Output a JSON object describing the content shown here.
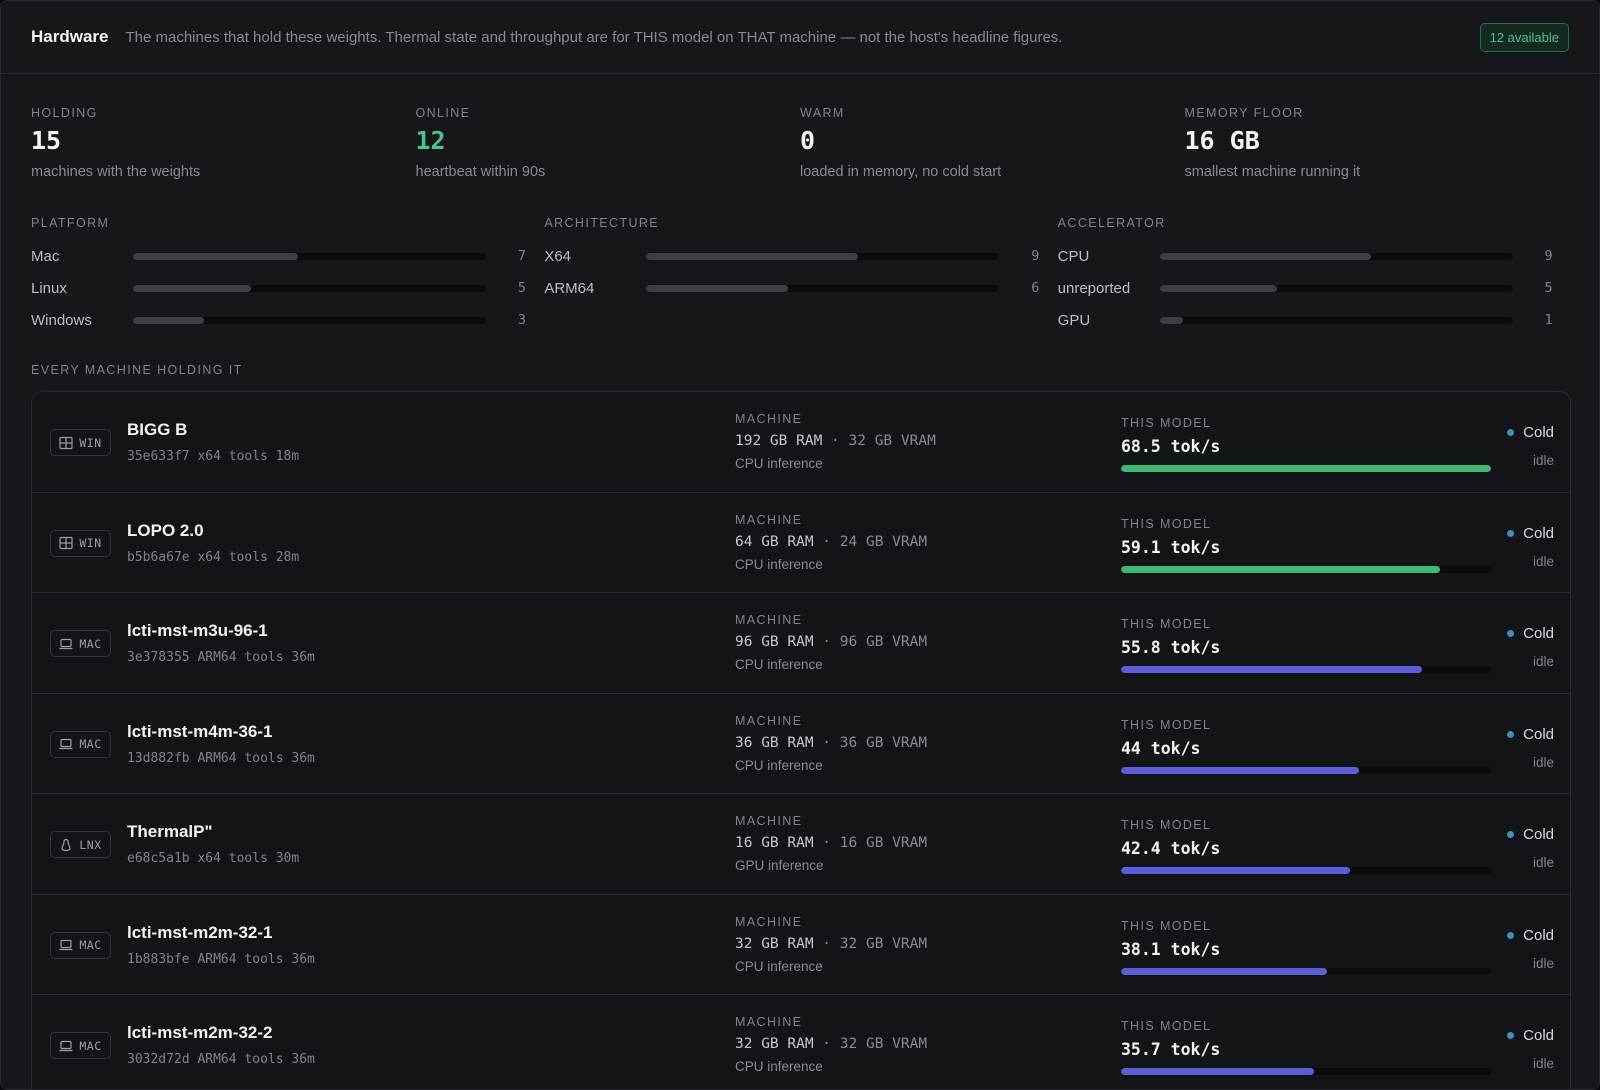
{
  "header": {
    "title": "Hardware",
    "description": "The machines that hold these weights. Thermal state and throughput are for THIS model on THAT machine — not the host's headline figures.",
    "badge": "12 available"
  },
  "stats": [
    {
      "label": "HOLDING",
      "value": "15",
      "sub": "machines with the weights",
      "accent": false
    },
    {
      "label": "ONLINE",
      "value": "12",
      "sub": "heartbeat within 90s",
      "accent": true
    },
    {
      "label": "WARM",
      "value": "0",
      "sub": "loaded in memory, no cold start",
      "accent": false
    },
    {
      "label": "MEMORY FLOOR",
      "value": "16 GB",
      "sub": "smallest machine running it",
      "accent": false
    }
  ],
  "distributions": [
    {
      "label": "PLATFORM",
      "max": 15,
      "rows": [
        {
          "name": "Mac",
          "count": 7
        },
        {
          "name": "Linux",
          "count": 5
        },
        {
          "name": "Windows",
          "count": 3
        }
      ]
    },
    {
      "label": "ARCHITECTURE",
      "max": 15,
      "rows": [
        {
          "name": "X64",
          "count": 9
        },
        {
          "name": "ARM64",
          "count": 6
        }
      ]
    },
    {
      "label": "ACCELERATOR",
      "max": 15,
      "rows": [
        {
          "name": "CPU",
          "count": 9
        },
        {
          "name": "unreported",
          "count": 5
        },
        {
          "name": "GPU",
          "count": 1
        }
      ]
    }
  ],
  "list_label": "EVERY MACHINE HOLDING IT",
  "machine_label": "MACHINE",
  "model_label": "THIS MODEL",
  "max_speed": 68.5,
  "colors": {
    "top": "#3fb872",
    "other": "#5b5fd6",
    "dot": "#3e90b8"
  },
  "machines": [
    {
      "os": "WIN",
      "os_icon": "windows-icon",
      "name": "BIGG B",
      "id": "35e633f7",
      "arch": "x64",
      "tools": "tools",
      "age": "18m",
      "ram": "192 GB RAM",
      "vram": "32 GB VRAM",
      "inference": "CPU inference",
      "speed": "68.5 tok/s",
      "speed_value": 68.5,
      "tier": "top",
      "state": "Cold",
      "activity": "idle"
    },
    {
      "os": "WIN",
      "os_icon": "windows-icon",
      "name": "LOPO 2.0",
      "id": "b5b6a67e",
      "arch": "x64",
      "tools": "tools",
      "age": "28m",
      "ram": "64 GB RAM",
      "vram": "24 GB VRAM",
      "inference": "CPU inference",
      "speed": "59.1 tok/s",
      "speed_value": 59.1,
      "tier": "top",
      "state": "Cold",
      "activity": "idle"
    },
    {
      "os": "MAC",
      "os_icon": "laptop-icon",
      "name": "lcti-mst-m3u-96-1",
      "id": "3e378355",
      "arch": "ARM64",
      "tools": "tools",
      "age": "36m",
      "ram": "96 GB RAM",
      "vram": "96 GB VRAM",
      "inference": "CPU inference",
      "speed": "55.8 tok/s",
      "speed_value": 55.8,
      "tier": "other",
      "state": "Cold",
      "activity": "idle"
    },
    {
      "os": "MAC",
      "os_icon": "laptop-icon",
      "name": "lcti-mst-m4m-36-1",
      "id": "13d882fb",
      "arch": "ARM64",
      "tools": "tools",
      "age": "36m",
      "ram": "36 GB RAM",
      "vram": "36 GB VRAM",
      "inference": "CPU inference",
      "speed": "44 tok/s",
      "speed_value": 44,
      "tier": "other",
      "state": "Cold",
      "activity": "idle"
    },
    {
      "os": "LNX",
      "os_icon": "linux-icon",
      "name": "ThermalP\"",
      "id": "e68c5a1b",
      "arch": "x64",
      "tools": "tools",
      "age": "30m",
      "ram": "16 GB RAM",
      "vram": "16 GB VRAM",
      "inference": "GPU inference",
      "speed": "42.4 tok/s",
      "speed_value": 42.4,
      "tier": "other",
      "state": "Cold",
      "activity": "idle"
    },
    {
      "os": "MAC",
      "os_icon": "laptop-icon",
      "name": "lcti-mst-m2m-32-1",
      "id": "1b883bfe",
      "arch": "ARM64",
      "tools": "tools",
      "age": "36m",
      "ram": "32 GB RAM",
      "vram": "32 GB VRAM",
      "inference": "CPU inference",
      "speed": "38.1 tok/s",
      "speed_value": 38.1,
      "tier": "other",
      "state": "Cold",
      "activity": "idle"
    },
    {
      "os": "MAC",
      "os_icon": "laptop-icon",
      "name": "lcti-mst-m2m-32-2",
      "id": "3032d72d",
      "arch": "ARM64",
      "tools": "tools",
      "age": "36m",
      "ram": "32 GB RAM",
      "vram": "32 GB VRAM",
      "inference": "CPU inference",
      "speed": "35.7 tok/s",
      "speed_value": 35.7,
      "tier": "other",
      "state": "Cold",
      "activity": "idle"
    }
  ]
}
